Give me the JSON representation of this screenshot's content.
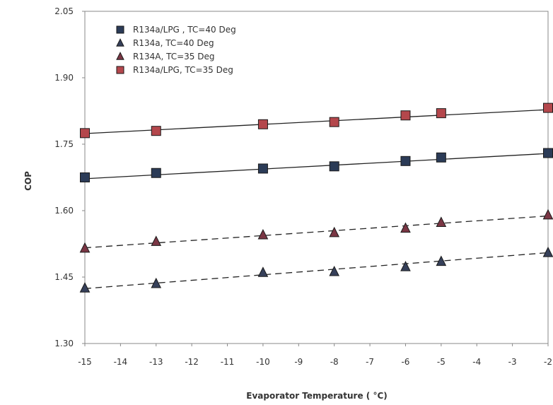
{
  "chart_data": {
    "type": "scatter",
    "title": "",
    "xlabel": "Evaporator Temperature ( °C)",
    "ylabel": "COP",
    "xlim": [
      -15,
      -2
    ],
    "ylim": [
      1.3,
      2.05
    ],
    "x_ticks": [
      -15,
      -14,
      -13,
      -12,
      -11,
      -10,
      -9,
      -8,
      -7,
      -6,
      -5,
      -4,
      -3,
      -2
    ],
    "y_ticks": [
      "1.30",
      "1.45",
      "1.60",
      "1.75",
      "1.90",
      "2.05"
    ],
    "grid": false,
    "legend_position": "top-left",
    "series": [
      {
        "name": "R134a/LPG , TC=40 Deg",
        "marker": "square",
        "color": "#2b3b57",
        "line": "solid",
        "x": [
          -15,
          -13,
          -10,
          -8,
          -6,
          -5,
          -2
        ],
        "y": [
          1.675,
          1.685,
          1.695,
          1.7,
          1.712,
          1.72,
          1.73
        ],
        "trend": [
          1.672,
          1.729
        ]
      },
      {
        "name": "R134a, TC=40 Deg",
        "marker": "triangle",
        "color": "#36405a",
        "line": "dashed",
        "x": [
          -15,
          -13,
          -10,
          -8,
          -6,
          -5,
          -2
        ],
        "y": [
          1.425,
          1.435,
          1.46,
          1.462,
          1.473,
          1.485,
          1.505
        ],
        "trend": [
          1.424,
          1.505
        ]
      },
      {
        "name": "R134A, TC=35 Deg",
        "marker": "triangle",
        "color": "#7a3644",
        "line": "dashed",
        "x": [
          -15,
          -13,
          -10,
          -8,
          -6,
          -5,
          -2
        ],
        "y": [
          1.515,
          1.53,
          1.545,
          1.55,
          1.56,
          1.573,
          1.59
        ],
        "trend": [
          1.516,
          1.588
        ]
      },
      {
        "name": "R134a/LPG, TC=35 Deg",
        "marker": "square",
        "color": "#b4474c",
        "line": "solid",
        "x": [
          -15,
          -13,
          -10,
          -8,
          -6,
          -5,
          -2
        ],
        "y": [
          1.775,
          1.78,
          1.795,
          1.8,
          1.815,
          1.82,
          1.832
        ],
        "trend": [
          1.774,
          1.828
        ]
      }
    ]
  }
}
